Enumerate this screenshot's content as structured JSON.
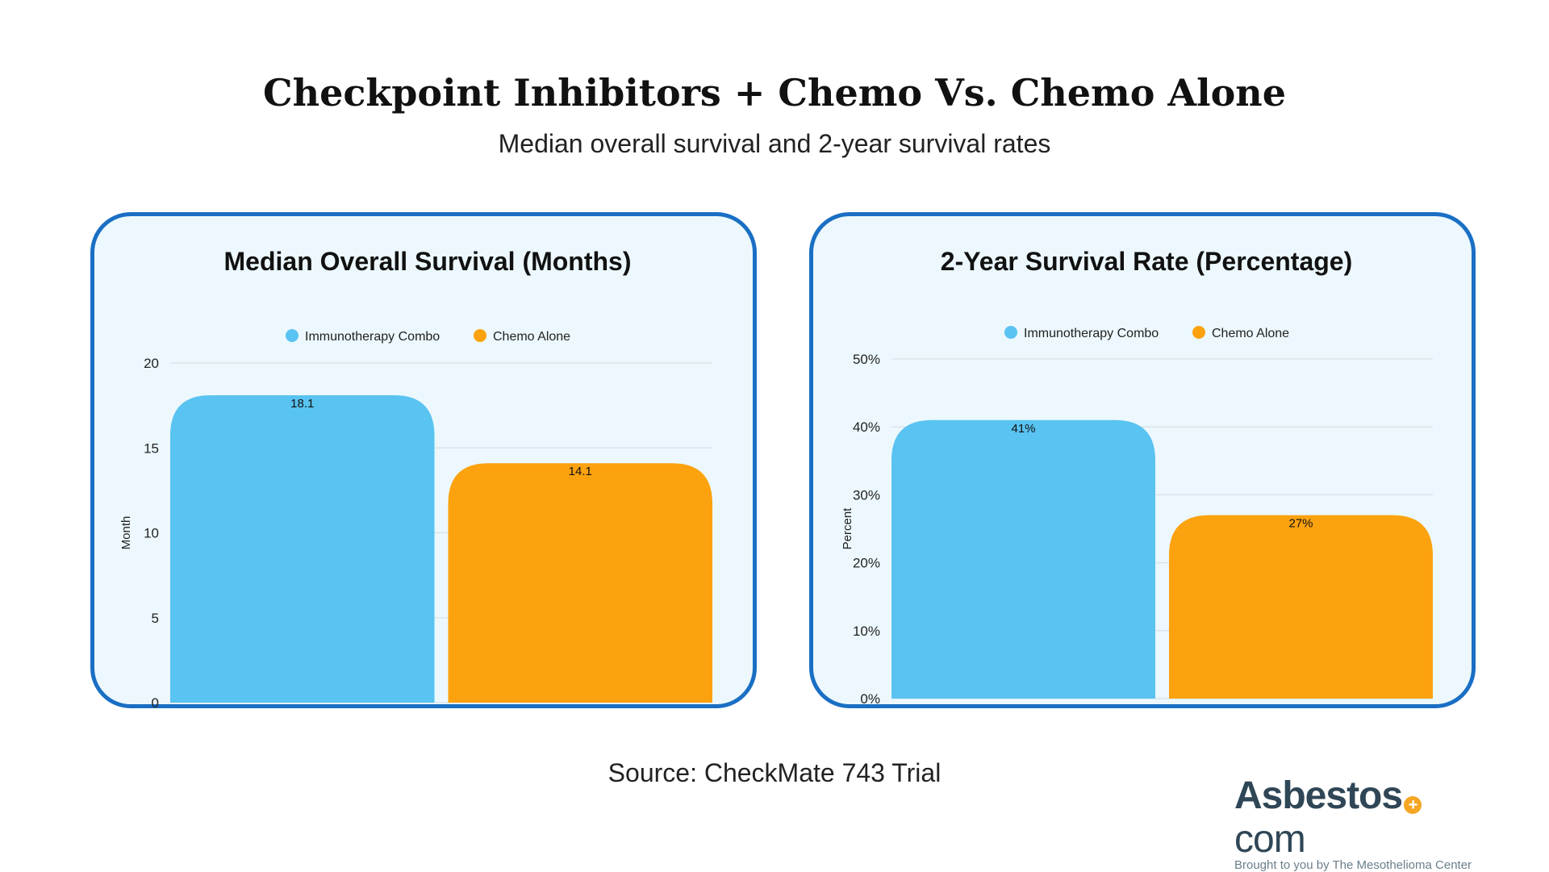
{
  "title": "Checkpoint Inhibitors + Chemo Vs. Chemo Alone",
  "subtitle": "Median overall survival and 2-year survival rates",
  "source": "Source: CheckMate 743 Trial",
  "logo": {
    "name": "Asbestos",
    "plus": "+",
    "suffix": "com",
    "tagline": "Brought to you by The Mesothelioma Center"
  },
  "colors": {
    "immunotherapy": "#59c3f1",
    "chemo": "#fca20f",
    "border": "#1a6fc4",
    "panel_bg": "#ecf8fd"
  },
  "chart_data": [
    {
      "type": "bar",
      "title": "Median Overall Survival (Months)",
      "ylabel": "Month",
      "xlabel": "",
      "ylim": [
        0,
        20
      ],
      "yticks": [
        0,
        5,
        10,
        15,
        20
      ],
      "ytick_labels": [
        "0",
        "5",
        "10",
        "15",
        "20"
      ],
      "grid": true,
      "legend": "top",
      "series": [
        {
          "name": "Immunotherapy Combo",
          "values": [
            18.1
          ],
          "label": "18.1"
        },
        {
          "name": "Chemo Alone",
          "values": [
            14.1
          ],
          "label": "14.1"
        }
      ]
    },
    {
      "type": "bar",
      "title": "2-Year Survival Rate (Percentage)",
      "ylabel": "Percent",
      "xlabel": "",
      "ylim": [
        0,
        50
      ],
      "yticks": [
        0,
        10,
        20,
        30,
        40,
        50
      ],
      "ytick_labels": [
        "0%",
        "10%",
        "20%",
        "30%",
        "40%",
        "50%"
      ],
      "grid": true,
      "legend": "top",
      "series": [
        {
          "name": "Immunotherapy Combo",
          "values": [
            41
          ],
          "label": "41%"
        },
        {
          "name": "Chemo Alone",
          "values": [
            27
          ],
          "label": "27%"
        }
      ]
    }
  ]
}
